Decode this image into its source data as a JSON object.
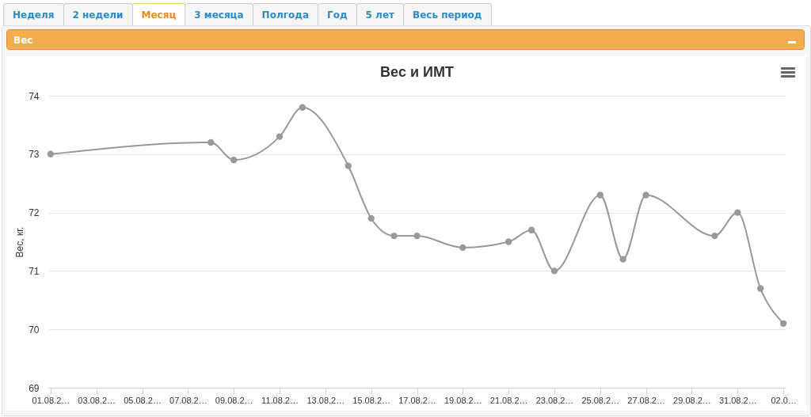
{
  "chart_data": {
    "type": "line",
    "title": "Вес и ИМТ",
    "ylabel": "Вес, кг.",
    "annotations": [
      "Неделя",
      "2 недели",
      "Месяц",
      "3 месяца",
      "Полгода",
      "Год",
      "5 лет",
      "Весь период",
      "Вес"
    ],
    "categories": [
      "01.08.2…",
      null,
      "03.08.2…",
      null,
      "05.08.2…",
      null,
      "07.08.2…",
      null,
      "09.08.2…",
      null,
      "11.08.2…",
      null,
      "13.08.2…",
      null,
      "15.08.2…",
      null,
      "17.08.2…",
      null,
      "19.08.2…",
      null,
      "21.08.2…",
      null,
      "23.08.2…",
      null,
      "25.08.2…",
      null,
      "27.08.2…",
      null,
      "29.08.2…",
      null,
      "31.08.2…",
      null,
      "02.0…"
    ],
    "series": [
      {
        "color": "#999999",
        "values": [
          73.0,
          null,
          null,
          null,
          null,
          null,
          null,
          73.2,
          72.9,
          null,
          73.3,
          73.8,
          null,
          72.8,
          71.9,
          71.6,
          71.6,
          null,
          71.4,
          null,
          71.5,
          71.7,
          71.0,
          null,
          72.3,
          71.2,
          72.3,
          null,
          null,
          71.6,
          72.0,
          70.7,
          70.1
        ]
      }
    ],
    "ylim": [
      69,
      74
    ],
    "yticks": [
      69,
      70,
      71,
      72,
      73,
      74
    ],
    "grid": "y",
    "marker": "circle",
    "line_style": "solid"
  }
}
